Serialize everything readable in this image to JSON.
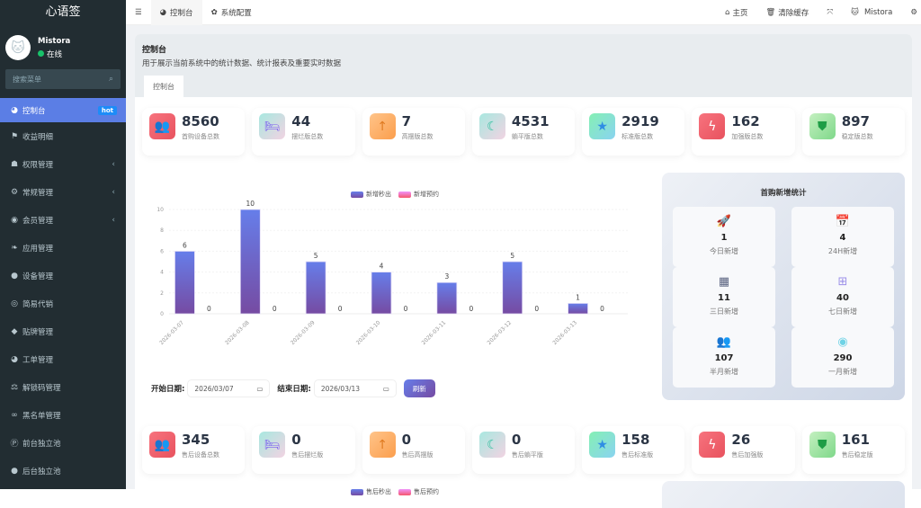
{
  "app": {
    "title": "心语签"
  },
  "user": {
    "name": "Mistora",
    "status": "在线",
    "avatar": "🐱"
  },
  "search": {
    "placeholder": "搜索菜单"
  },
  "sidebar": {
    "items": [
      {
        "label": "控制台",
        "icon": "dashboard-icon",
        "glyph": "◕",
        "badge": "hot",
        "active": true
      },
      {
        "label": "收益明细",
        "icon": "flag-icon",
        "glyph": "⚑"
      },
      {
        "label": "权限管理",
        "icon": "users-icon",
        "glyph": "☗",
        "caret": "‹"
      },
      {
        "label": "常规管理",
        "icon": "cogs-icon",
        "glyph": "⚙",
        "caret": "‹"
      },
      {
        "label": "会员管理",
        "icon": "user-circle-icon",
        "glyph": "◉",
        "caret": "‹"
      },
      {
        "label": "应用管理",
        "icon": "leaf-icon",
        "glyph": "❧"
      },
      {
        "label": "设备管理",
        "icon": "device-icon",
        "glyph": "●"
      },
      {
        "label": "简易代销",
        "icon": "eye-icon",
        "glyph": "◎"
      },
      {
        "label": "贴牌管理",
        "icon": "tags-icon",
        "glyph": "◆"
      },
      {
        "label": "工单管理",
        "icon": "dashboard-icon",
        "glyph": "◕"
      },
      {
        "label": "解锁码管理",
        "icon": "balance-icon",
        "glyph": "⚖"
      },
      {
        "label": "黑名单管理",
        "icon": "bicycle-icon",
        "glyph": "∞"
      },
      {
        "label": "前台独立池",
        "icon": "parking-icon",
        "glyph": "Ⓟ"
      },
      {
        "label": "后台独立池",
        "icon": "apple-icon",
        "glyph": "●"
      }
    ]
  },
  "topbar": {
    "tabs": [
      {
        "label": "控制台",
        "glyph": "◕"
      },
      {
        "label": "系统配置",
        "glyph": "✿"
      }
    ],
    "home": "主页",
    "clear_cache": "清除缓存",
    "user": "Mistora"
  },
  "header": {
    "title": "控制台",
    "description": "用于展示当前系统中的统计数据、统计报表及重要实时数据",
    "tab": "控制台"
  },
  "cards1": [
    {
      "value": "8560",
      "label": "首购设备总数",
      "glyph": "👥",
      "bg": "linear-gradient(135deg,#f7737e,#e8525e)"
    },
    {
      "value": "44",
      "label": "摆烂版总数",
      "glyph": "🛏",
      "bg": "linear-gradient(135deg,#a8e8e0,#f2d3e2)"
    },
    {
      "value": "7",
      "label": "高摆版总数",
      "glyph": "↑",
      "bg": "linear-gradient(135deg,#ffc48a,#fb9e4c)"
    },
    {
      "value": "4531",
      "label": "躺平版总数",
      "glyph": "☾",
      "bg": "linear-gradient(135deg,#a8e8e0,#f2d3e2)"
    },
    {
      "value": "2919",
      "label": "标准版总数",
      "glyph": "★",
      "bg": "linear-gradient(135deg,#84f0b4,#8ad3f0)"
    },
    {
      "value": "162",
      "label": "加强版总数",
      "glyph": "ϟ",
      "bg": "linear-gradient(135deg,#f7737e,#e8525e)"
    },
    {
      "value": "897",
      "label": "稳定版总数",
      "glyph": "⛊",
      "bg": "linear-gradient(135deg,#c4f0c0,#7fd88a)"
    }
  ],
  "cards2": [
    {
      "value": "345",
      "label": "售后设备总数",
      "glyph": "👥",
      "bg": "linear-gradient(135deg,#f7737e,#e8525e)"
    },
    {
      "value": "0",
      "label": "售后摆烂版",
      "glyph": "🛏",
      "bg": "linear-gradient(135deg,#a8e8e0,#f2d3e2)"
    },
    {
      "value": "0",
      "label": "售后高摆版",
      "glyph": "↑",
      "bg": "linear-gradient(135deg,#ffc48a,#fb9e4c)"
    },
    {
      "value": "0",
      "label": "售后躺平版",
      "glyph": "☾",
      "bg": "linear-gradient(135deg,#a8e8e0,#f2d3e2)"
    },
    {
      "value": "158",
      "label": "售后标准版",
      "glyph": "★",
      "bg": "linear-gradient(135deg,#84f0b4,#8ad3f0)"
    },
    {
      "value": "26",
      "label": "售后加强版",
      "glyph": "ϟ",
      "bg": "linear-gradient(135deg,#f7737e,#e8525e)"
    },
    {
      "value": "161",
      "label": "售后稳定版",
      "glyph": "⛊",
      "bg": "linear-gradient(135deg,#c4f0c0,#7fd88a)"
    }
  ],
  "chart_data": [
    {
      "type": "bar",
      "categories": [
        "2026-03-07",
        "2026-03-08",
        "2026-03-09",
        "2026-03-10",
        "2026-03-11",
        "2026-03-12",
        "2026-03-13"
      ],
      "series": [
        {
          "name": "新增秒出",
          "values": [
            6,
            10,
            5,
            4,
            3,
            5,
            1
          ],
          "color": "#667eea"
        },
        {
          "name": "新增预约",
          "values": [
            0,
            0,
            0,
            0,
            0,
            0,
            0
          ],
          "color": "#f472b6"
        }
      ],
      "yticks": [
        0,
        2,
        4,
        6,
        8,
        10
      ],
      "ylim": [
        0,
        10
      ],
      "grid": true,
      "legend_position": "top"
    }
  ],
  "legend2": [
    {
      "name": "售后秒出",
      "color": "#667eea"
    },
    {
      "name": "售后预约",
      "color": "#f472b6"
    }
  ],
  "stats": {
    "title": "首购新增统计",
    "items": [
      {
        "value": "1",
        "label": "今日新增",
        "glyph": "🚀",
        "color": "#1cc29a",
        "icon": "rocket-icon"
      },
      {
        "value": "4",
        "label": "24H新增",
        "glyph": "📅",
        "color": "#3ea6e6",
        "icon": "calendar-check-icon"
      },
      {
        "value": "11",
        "label": "三日新增",
        "glyph": "▦",
        "color": "#5a6380",
        "icon": "calendar-icon"
      },
      {
        "value": "40",
        "label": "七日新增",
        "glyph": "⊞",
        "color": "#9b8fe8",
        "icon": "calendar-plus-icon"
      },
      {
        "value": "107",
        "label": "半月新增",
        "glyph": "👥",
        "color": "#9ee07e",
        "icon": "users-icon"
      },
      {
        "value": "290",
        "label": "一月新增",
        "glyph": "◉",
        "color": "#6fd3e6",
        "icon": "user-circle-icon"
      }
    ]
  },
  "dates": {
    "start_label": "开始日期:",
    "start": "2026/03/07",
    "end_label": "结束日期:",
    "end": "2026/03/13",
    "refresh": "刷新"
  }
}
